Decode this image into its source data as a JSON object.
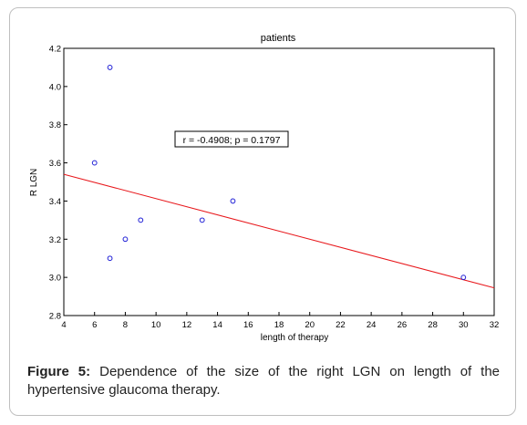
{
  "figure": {
    "label": "Figure 5:",
    "caption": "Dependence of the size of the right LGN on length of the hypertensive glaucoma therapy."
  },
  "chart_data": {
    "type": "scatter",
    "title": "patients",
    "xlabel": "length of therapy",
    "ylabel": "R LGN",
    "xlim": [
      4,
      32
    ],
    "ylim": [
      2.8,
      4.2
    ],
    "xticks": [
      4,
      6,
      8,
      10,
      12,
      14,
      16,
      18,
      20,
      22,
      24,
      26,
      28,
      30,
      32
    ],
    "yticks": [
      "2.8",
      "3.0",
      "3.2",
      "3.4",
      "3.6",
      "3.8",
      "4.0",
      "4.2"
    ],
    "points": [
      {
        "x": 7,
        "y": 4.1
      },
      {
        "x": 6,
        "y": 3.6
      },
      {
        "x": 15,
        "y": 3.4
      },
      {
        "x": 9,
        "y": 3.3
      },
      {
        "x": 13,
        "y": 3.3
      },
      {
        "x": 8,
        "y": 3.2
      },
      {
        "x": 7,
        "y": 3.1
      },
      {
        "x": 30,
        "y": 3.0
      }
    ],
    "fit_line": {
      "x0": 4,
      "y0": 3.54,
      "x1": 32,
      "y1": 2.945
    },
    "annotation": "r = -0.4908; p = 0.1797",
    "colors": {
      "points": "#1f1fd6",
      "fit": "#e8181c",
      "axes": "#000000"
    },
    "grid": false
  }
}
